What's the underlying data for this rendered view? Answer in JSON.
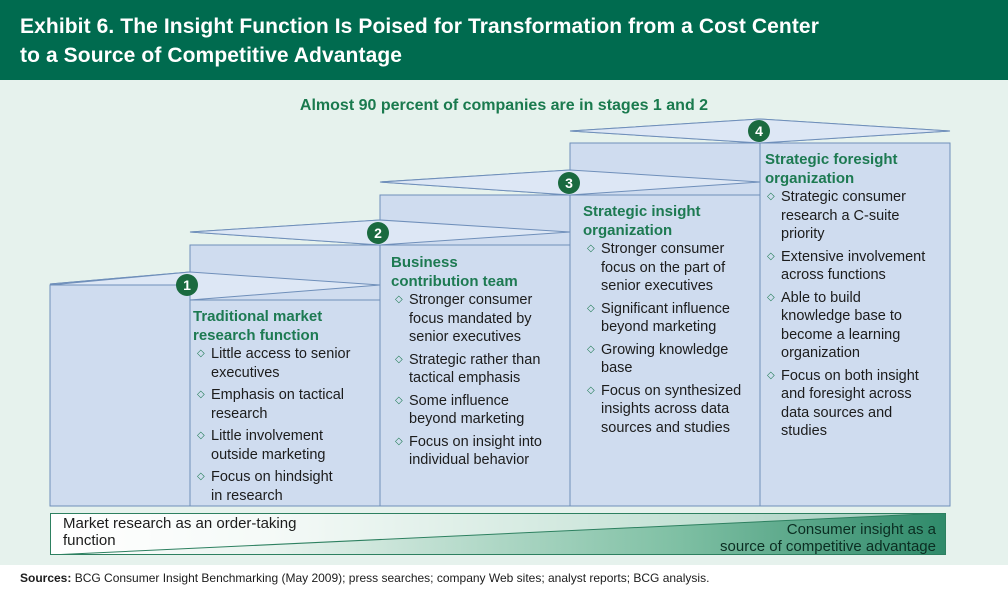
{
  "header": {
    "title_line1": "Exhibit 6. The Insight Function Is Poised for Transformation from a Cost Center",
    "title_line2": "to a Source of Competitive Advantage"
  },
  "subtitle": "Almost 90 percent of companies are in stages 1 and 2",
  "stages": [
    {
      "number": "1",
      "title_lines": [
        "Traditional market",
        "research function"
      ],
      "bullets": [
        [
          "Little access to senior",
          "executives"
        ],
        [
          "Emphasis on tactical",
          "research"
        ],
        [
          "Little involvement",
          "outside marketing"
        ],
        [
          "Focus on hindsight",
          "in research"
        ]
      ]
    },
    {
      "number": "2",
      "title_lines": [
        "Business",
        "contribution team"
      ],
      "bullets": [
        [
          "Stronger consumer",
          "focus mandated by",
          "senior executives"
        ],
        [
          "Strategic rather than",
          "tactical emphasis"
        ],
        [
          "Some influence",
          "beyond marketing"
        ],
        [
          "Focus on insight into",
          "individual behavior"
        ]
      ]
    },
    {
      "number": "3",
      "title_lines": [
        "Strategic insight",
        "organization"
      ],
      "bullets": [
        [
          "Stronger consumer",
          "focus on the part of",
          "senior executives"
        ],
        [
          "Significant influence",
          "beyond marketing"
        ],
        [
          "Growing knowledge",
          "base"
        ],
        [
          "Focus on synthesized",
          "insights across data",
          "sources and studies"
        ]
      ]
    },
    {
      "number": "4",
      "title_lines": [
        "Strategic foresight",
        "organization"
      ],
      "bullets": [
        [
          "Strategic consumer",
          "research a C-suite",
          "priority"
        ],
        [
          "Extensive involvement",
          "across functions"
        ],
        [
          "Able to build",
          "knowledge base to",
          "become a learning",
          "organization"
        ],
        [
          "Focus on both insight",
          "and foresight across",
          "data sources and",
          "studies"
        ]
      ]
    }
  ],
  "continuum": {
    "left_lines": [
      "Market research as an order-taking",
      "function"
    ],
    "right_lines": [
      "Consumer insight as a",
      "source of competitive advantage"
    ]
  },
  "sources": {
    "label": "Sources:",
    "text": " BCG Consumer Insight Benchmarking (May 2009); press searches; company Web sites; analyst reports; BCG analysis."
  },
  "colors": {
    "header_bg": "#006b4f",
    "panel_bg": "#e6f2ed",
    "step_fill": "#cfdcef",
    "step_top": "#dde7f5",
    "accent_green": "#1d7a52",
    "badge": "#1a6a3f"
  }
}
